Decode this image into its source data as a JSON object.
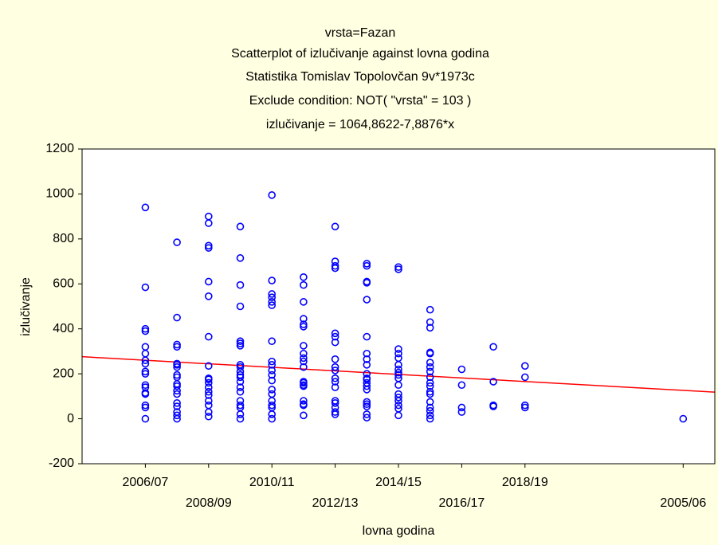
{
  "chart_data": {
    "type": "scatter",
    "title_lines": [
      "vrsta=Fazan",
      "Scatterplot of izlučivanje against lovna godina",
      "Statistika Tomislav Topolovčan 9v*1973c",
      "Exclude condition: NOT( \"vrsta\" = 103 )",
      "izlučivanje = 1064,8622-7,8876*x"
    ],
    "xlabel": "lovna godina",
    "ylabel": "izlučivanje",
    "xlim": [
      100,
      120
    ],
    "ylim": [
      -200,
      1200
    ],
    "xticks": [
      {
        "value": 102,
        "label": "2006/07"
      },
      {
        "value": 104,
        "label": "2008/09"
      },
      {
        "value": 106,
        "label": "2010/11"
      },
      {
        "value": 108,
        "label": "2012/13"
      },
      {
        "value": 110,
        "label": "2014/15"
      },
      {
        "value": 112,
        "label": "2016/17"
      },
      {
        "value": 114,
        "label": "2018/19"
      },
      {
        "value": 119,
        "label": "2005/06"
      }
    ],
    "yticks": [
      -200,
      0,
      200,
      400,
      600,
      800,
      1000,
      1200
    ],
    "color": "#0000ff",
    "x": [
      102,
      102,
      102,
      102,
      102,
      102,
      102,
      102,
      102,
      102,
      102,
      102,
      102,
      102,
      102,
      102,
      102,
      103,
      103,
      103,
      103,
      103,
      103,
      103,
      103,
      103,
      103,
      103,
      103,
      103,
      103,
      103,
      103,
      103,
      103,
      104,
      104,
      104,
      104,
      104,
      104,
      104,
      104,
      104,
      104,
      104,
      104,
      104,
      104,
      104,
      104,
      104,
      104,
      105,
      105,
      105,
      105,
      105,
      105,
      105,
      105,
      105,
      105,
      105,
      105,
      105,
      105,
      105,
      105,
      105,
      105,
      105,
      105,
      106,
      106,
      106,
      106,
      106,
      106,
      106,
      106,
      106,
      106,
      106,
      106,
      106,
      106,
      106,
      106,
      106,
      106,
      106,
      107,
      107,
      107,
      107,
      107,
      107,
      107,
      107,
      107,
      107,
      107,
      107,
      107,
      107,
      107,
      107,
      107,
      107,
      107,
      108,
      108,
      108,
      108,
      108,
      108,
      108,
      108,
      108,
      108,
      108,
      108,
      108,
      108,
      108,
      108,
      108,
      108,
      109,
      109,
      109,
      109,
      109,
      109,
      109,
      109,
      109,
      109,
      109,
      109,
      109,
      109,
      109,
      109,
      109,
      109,
      109,
      109,
      110,
      110,
      110,
      110,
      110,
      110,
      110,
      110,
      110,
      110,
      110,
      110,
      110,
      110,
      110,
      110,
      110,
      111,
      111,
      111,
      111,
      111,
      111,
      111,
      111,
      111,
      111,
      111,
      111,
      111,
      111,
      111,
      111,
      111,
      111,
      112,
      112,
      112,
      112,
      113,
      113,
      113,
      113,
      114,
      114,
      114,
      114,
      119
    ],
    "values": [
      940,
      585,
      400,
      390,
      320,
      290,
      260,
      245,
      210,
      200,
      150,
      140,
      115,
      110,
      60,
      50,
      0,
      785,
      450,
      330,
      320,
      245,
      240,
      230,
      195,
      185,
      155,
      145,
      125,
      110,
      70,
      55,
      30,
      15,
      0,
      900,
      870,
      770,
      760,
      610,
      545,
      365,
      235,
      180,
      175,
      160,
      140,
      120,
      105,
      80,
      60,
      30,
      10,
      855,
      715,
      595,
      500,
      345,
      335,
      325,
      240,
      230,
      210,
      195,
      185,
      165,
      140,
      120,
      80,
      60,
      50,
      20,
      0,
      995,
      615,
      555,
      540,
      520,
      505,
      345,
      255,
      240,
      215,
      195,
      170,
      130,
      110,
      80,
      60,
      50,
      20,
      0,
      630,
      595,
      520,
      445,
      420,
      410,
      325,
      290,
      270,
      255,
      230,
      165,
      160,
      150,
      145,
      80,
      65,
      60,
      15,
      855,
      700,
      680,
      670,
      380,
      365,
      340,
      265,
      230,
      215,
      180,
      165,
      140,
      80,
      70,
      50,
      30,
      20,
      690,
      680,
      610,
      605,
      530,
      365,
      290,
      265,
      240,
      200,
      180,
      175,
      160,
      145,
      130,
      75,
      65,
      55,
      20,
      5,
      675,
      665,
      310,
      290,
      270,
      240,
      220,
      205,
      195,
      180,
      150,
      110,
      95,
      80,
      60,
      45,
      15,
      485,
      430,
      405,
      295,
      290,
      250,
      230,
      210,
      185,
      160,
      145,
      120,
      110,
      75,
      50,
      35,
      15,
      0,
      220,
      150,
      50,
      30,
      320,
      165,
      60,
      55,
      235,
      185,
      60,
      50,
      0
    ],
    "fit": {
      "x": [
        100,
        120
      ],
      "values": [
        276.1,
        118.35
      ],
      "color": "#ff0000"
    }
  }
}
